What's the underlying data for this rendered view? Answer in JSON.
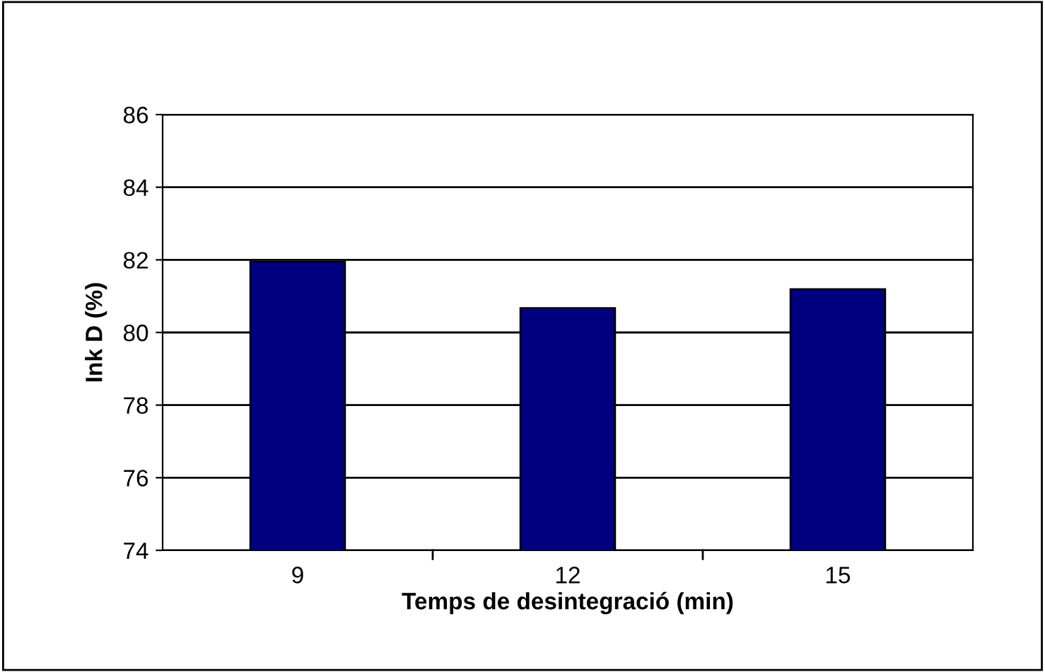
{
  "chart_data": {
    "type": "bar",
    "xlabel": "Temps de desintegració (min)",
    "ylabel": "Ink D (%)",
    "categories": [
      "9",
      "12",
      "15"
    ],
    "values": [
      81.95,
      80.67,
      81.19
    ],
    "color": "#000080",
    "ylim": [
      74,
      86
    ],
    "yticks": [
      74,
      76,
      78,
      80,
      82,
      84,
      86
    ],
    "grid": "y",
    "legend": false
  }
}
